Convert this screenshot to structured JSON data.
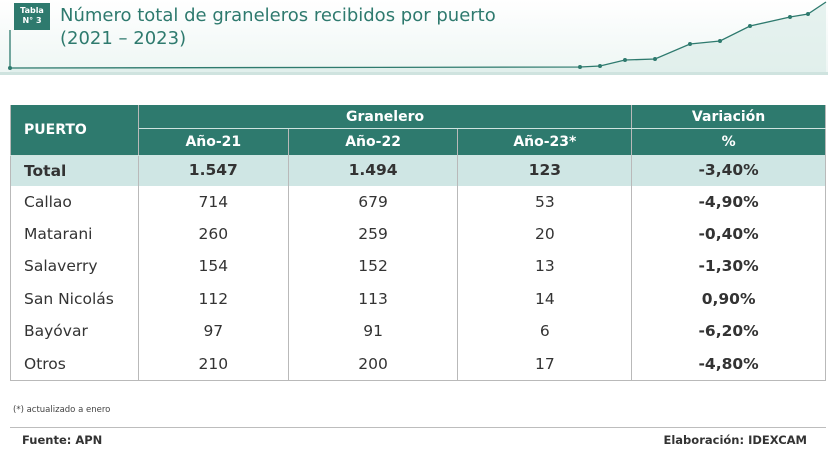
{
  "header": {
    "badge": [
      "Tabla",
      "N° 3"
    ],
    "title": "Número total de graneleros recibidos por puerto",
    "subtitle": "(2021 – 2023)"
  },
  "table": {
    "head": {
      "port": "PUERTO",
      "group": "Granelero",
      "variation": "Variación",
      "years": [
        "Año-21",
        "Año-22",
        "Año-23*"
      ],
      "unit": "%"
    },
    "rows": [
      [
        "Total",
        "1.547",
        "1.494",
        "123",
        "-3,40%"
      ],
      [
        "Callao",
        "714",
        "679",
        "53",
        "-4,90%"
      ],
      [
        "Matarani",
        "260",
        "259",
        "20",
        "-0,40%"
      ],
      [
        "Salaverry",
        "154",
        "152",
        "13",
        "-1,30%"
      ],
      [
        "San Nicolás",
        "112",
        "113",
        "14",
        "0,90%"
      ],
      [
        "Bayóvar",
        "97",
        "91",
        "6",
        "-6,20%"
      ],
      [
        "Otros",
        "210",
        "200",
        "17",
        "-4,80%"
      ]
    ]
  },
  "footnote": "(*) actualizado a enero",
  "footer": {
    "source": "Fuente: APN",
    "credit": "Elaboración: IDEXCAM"
  }
}
